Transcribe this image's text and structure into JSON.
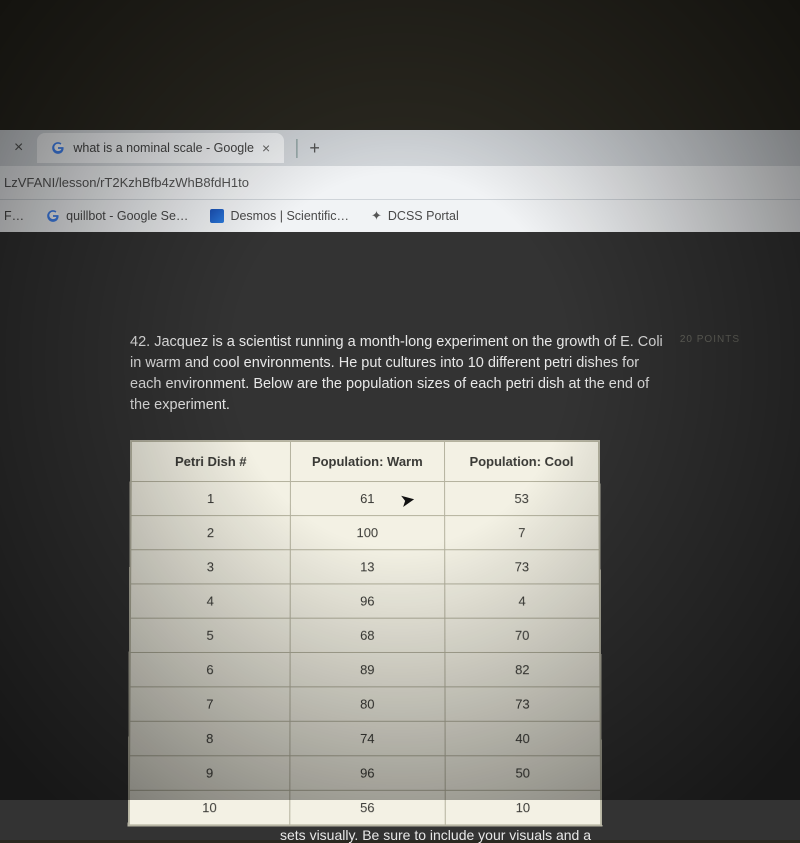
{
  "browser": {
    "prev_tab_close": "×",
    "active_tab": {
      "favicon": "G",
      "title": "what is a nominal scale - Google",
      "close": "×"
    },
    "new_tab": "+",
    "url": "LzVFANI/lesson/rT2KzhBfb4zWhB8fdH1to",
    "bookmarks": [
      {
        "label": "F…",
        "icon": "dot"
      },
      {
        "label": "quillbot - Google Se…",
        "icon": "G"
      },
      {
        "label": "Desmos | Scientific…",
        "icon": "desmos"
      },
      {
        "label": "DCSS Portal",
        "icon": "star"
      }
    ]
  },
  "question": {
    "number": "42.",
    "text": "Jacquez is a scientist running a month-long experiment on the growth of E. Coli in warm and cool environments. He put cultures into 10 different petri dishes for each environment. Below are the population sizes of each petri dish at the end of the experiment.",
    "points": "20 POINTS"
  },
  "table": {
    "columns": [
      "Petri Dish #",
      "Population: Warm",
      "Population: Cool"
    ],
    "rows": [
      [
        "1",
        "61",
        "53"
      ],
      [
        "2",
        "100",
        "7"
      ],
      [
        "3",
        "13",
        "73"
      ],
      [
        "4",
        "96",
        "4"
      ],
      [
        "5",
        "68",
        "70"
      ],
      [
        "6",
        "89",
        "82"
      ],
      [
        "7",
        "80",
        "73"
      ],
      [
        "8",
        "74",
        "40"
      ],
      [
        "9",
        "96",
        "50"
      ],
      [
        "10",
        "56",
        "10"
      ]
    ],
    "col_widths": [
      "34%",
      "33%",
      "33%"
    ],
    "bg_color": "#f3f1e4",
    "border_color": "#b4b29e",
    "text_color": "#3a3a36",
    "header_fontsize": 13,
    "cell_fontsize": 13
  },
  "footer": "sets visually. Be sure to include your visuals and a",
  "colors": {
    "page_bg": "#333333",
    "chrome_bg": "#f1f3f5",
    "text_light": "#e8e8e8"
  }
}
